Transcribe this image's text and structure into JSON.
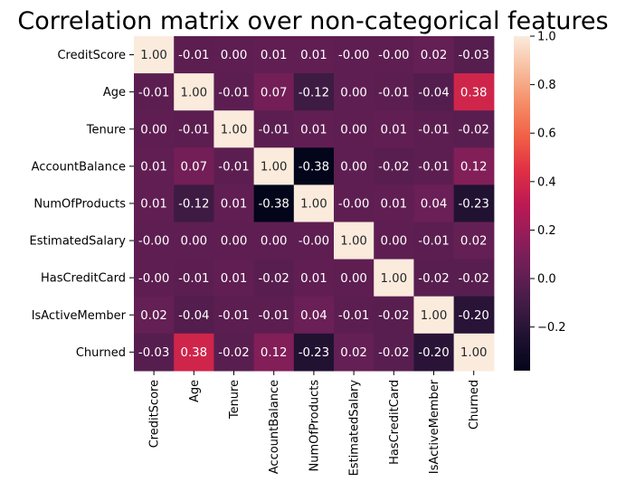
{
  "chart_data": {
    "type": "heatmap",
    "title": "Correlation matrix over non-categorical features",
    "xlabel": "",
    "ylabel": "",
    "row_labels": [
      "CreditScore",
      "Age",
      "Tenure",
      "AccountBalance",
      "NumOfProducts",
      "EstimatedSalary",
      "HasCreditCard",
      "IsActiveMember",
      "Churned"
    ],
    "col_labels": [
      "CreditScore",
      "Age",
      "Tenure",
      "AccountBalance",
      "NumOfProducts",
      "EstimatedSalary",
      "HasCreditCard",
      "IsActiveMember",
      "Churned"
    ],
    "values": [
      [
        1.0,
        -0.01,
        0.0,
        0.01,
        0.01,
        -0.0,
        -0.0,
        0.02,
        -0.03
      ],
      [
        -0.01,
        1.0,
        -0.01,
        0.07,
        -0.12,
        0.0,
        -0.01,
        -0.04,
        0.38
      ],
      [
        0.0,
        -0.01,
        1.0,
        -0.01,
        0.01,
        0.0,
        0.01,
        -0.01,
        -0.02
      ],
      [
        0.01,
        0.07,
        -0.01,
        1.0,
        -0.38,
        0.0,
        -0.02,
        -0.01,
        0.12
      ],
      [
        0.01,
        -0.12,
        0.01,
        -0.38,
        1.0,
        -0.0,
        0.01,
        0.04,
        -0.23
      ],
      [
        -0.0,
        0.0,
        0.0,
        0.0,
        -0.0,
        1.0,
        0.0,
        -0.01,
        0.02
      ],
      [
        -0.0,
        -0.01,
        0.01,
        -0.02,
        0.01,
        0.0,
        1.0,
        -0.02,
        -0.02
      ],
      [
        0.02,
        -0.04,
        -0.01,
        -0.01,
        0.04,
        -0.01,
        -0.02,
        1.0,
        -0.2
      ],
      [
        -0.03,
        0.38,
        -0.02,
        0.12,
        -0.23,
        0.02,
        -0.02,
        -0.2,
        1.0
      ]
    ],
    "cell_text": [
      [
        "1.00",
        "-0.01",
        "0.00",
        "0.01",
        "0.01",
        "-0.00",
        "-0.00",
        "0.02",
        "-0.03"
      ],
      [
        "-0.01",
        "1.00",
        "-0.01",
        "0.07",
        "-0.12",
        "0.00",
        "-0.01",
        "-0.04",
        "0.38"
      ],
      [
        "0.00",
        "-0.01",
        "1.00",
        "-0.01",
        "0.01",
        "0.00",
        "0.01",
        "-0.01",
        "-0.02"
      ],
      [
        "0.01",
        "0.07",
        "-0.01",
        "1.00",
        "-0.38",
        "0.00",
        "-0.02",
        "-0.01",
        "0.12"
      ],
      [
        "0.01",
        "-0.12",
        "0.01",
        "-0.38",
        "1.00",
        "-0.00",
        "0.01",
        "0.04",
        "-0.23"
      ],
      [
        "-0.00",
        "0.00",
        "0.00",
        "0.00",
        "-0.00",
        "1.00",
        "0.00",
        "-0.01",
        "0.02"
      ],
      [
        "-0.00",
        "-0.01",
        "0.01",
        "-0.02",
        "0.01",
        "0.00",
        "1.00",
        "-0.02",
        "-0.02"
      ],
      [
        "0.02",
        "-0.04",
        "-0.01",
        "-0.01",
        "0.04",
        "-0.01",
        "-0.02",
        "1.00",
        "-0.20"
      ],
      [
        "-0.03",
        "0.38",
        "-0.02",
        "0.12",
        "-0.23",
        "0.02",
        "-0.02",
        "-0.20",
        "1.00"
      ]
    ],
    "color_range": [
      -0.38,
      1.0
    ],
    "colormap": "rocket",
    "colorbar_ticks": [
      1.0,
      0.8,
      0.6,
      0.4,
      0.2,
      0.0,
      -0.2
    ],
    "colorbar_tick_labels": [
      "1.0",
      "0.8",
      "0.6",
      "0.4",
      "0.2",
      "0.0",
      "−0.2"
    ],
    "grid": false
  }
}
